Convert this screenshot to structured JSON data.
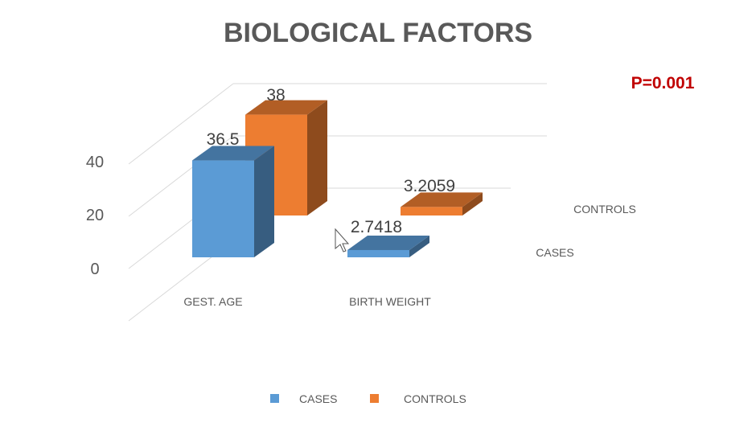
{
  "chart_data": {
    "type": "bar",
    "variant": "3d-column",
    "title": "BIOLOGICAL FACTORS",
    "categories": [
      "GEST. AGE",
      "BIRTH WEIGHT"
    ],
    "series": [
      {
        "name": "CASES",
        "values": [
          36.5,
          2.7418
        ],
        "labels": [
          "36.5",
          "2.7418"
        ],
        "color": "#5b9bd5"
      },
      {
        "name": "CONTROLS",
        "values": [
          38,
          3.2059
        ],
        "labels": [
          "38",
          "3.2059"
        ],
        "color": "#ed7d31"
      }
    ],
    "yticks": [
      "0",
      "20",
      "40"
    ],
    "ylim": [
      0,
      60
    ],
    "grid": true,
    "legend": "bottom",
    "annotation": "P=0.001"
  }
}
